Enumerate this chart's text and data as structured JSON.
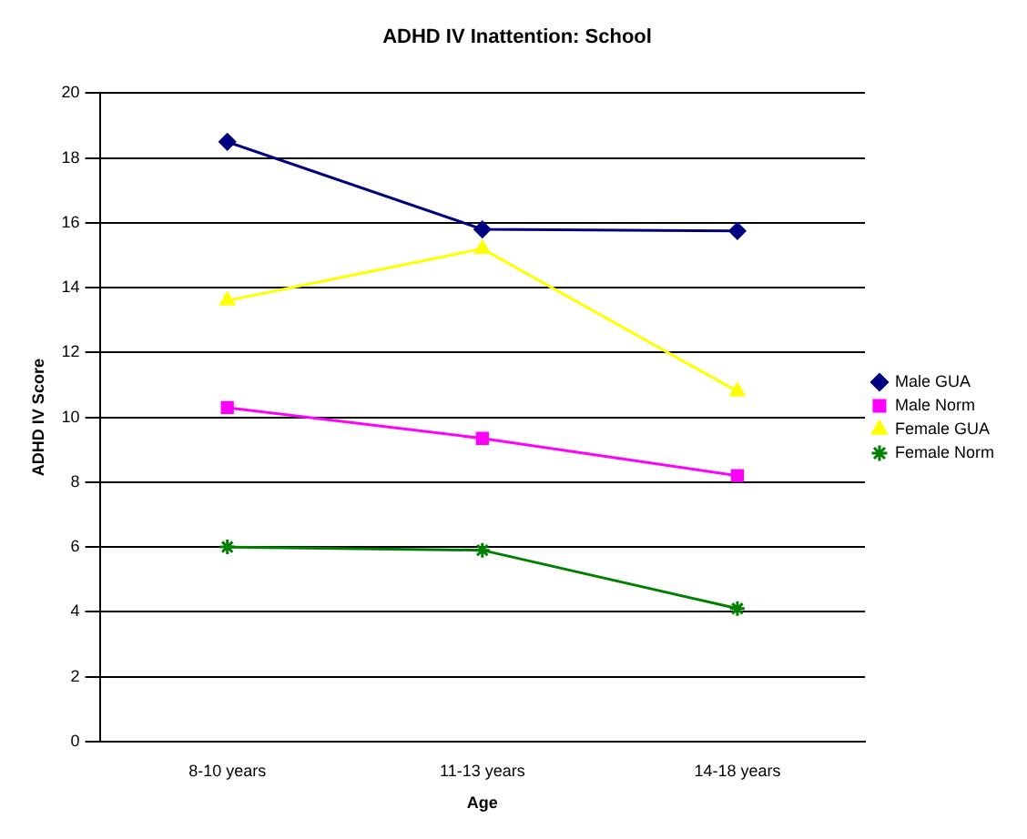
{
  "chart_data": {
    "type": "line",
    "title": "ADHD IV Inattention: School",
    "xlabel": "Age",
    "ylabel": "ADHD IV Score",
    "categories": [
      "8-10 years",
      "11-13 years",
      "14-18 years"
    ],
    "series": [
      {
        "name": "Male GUA",
        "color": "#000080",
        "marker": "diamond",
        "values": [
          18.5,
          15.8,
          15.75
        ]
      },
      {
        "name": "Male Norm",
        "color": "#ff00ff",
        "marker": "square",
        "values": [
          10.3,
          9.35,
          8.2
        ]
      },
      {
        "name": "Female GUA",
        "color": "#ffff00",
        "marker": "triangle",
        "values": [
          13.6,
          15.2,
          10.8
        ]
      },
      {
        "name": "Female Norm",
        "color": "#008000",
        "marker": "cross",
        "values": [
          6.0,
          5.9,
          4.1
        ]
      }
    ],
    "ylim": [
      0,
      20
    ],
    "yticks": [
      0,
      2,
      4,
      6,
      8,
      10,
      12,
      14,
      16,
      18,
      20
    ],
    "grid": "y",
    "legend": "right"
  }
}
